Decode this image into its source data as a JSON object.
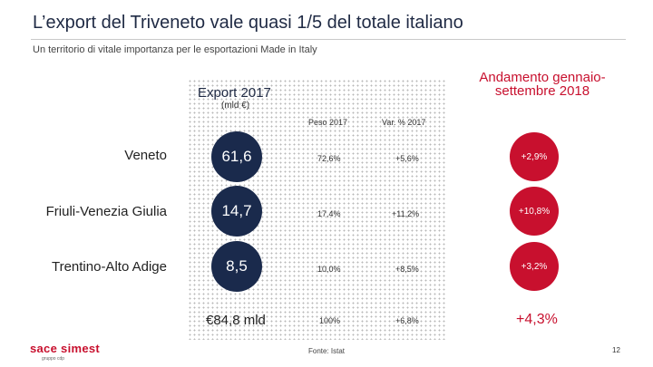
{
  "slide": {
    "title": "L’export del Triveneto vale quasi 1/5 del totale italiano",
    "subtitle": "Un territorio di vitale importanza per le esportazioni Made in Italy",
    "page_number": "12",
    "source": "Fonte: Istat"
  },
  "panel": {
    "title": "Export 2017",
    "unit": "(mld €)",
    "col_weight": "Peso 2017",
    "col_change": "Var. % 2017"
  },
  "trend": {
    "title": "Andamento gennaio-settembre 2018"
  },
  "rows": [
    {
      "region": "Veneto",
      "export": "61,6",
      "weight": "72,6%",
      "change": "+5,6%",
      "trend": "+2,9%"
    },
    {
      "region": "Friuli-Venezia Giulia",
      "export": "14,7",
      "weight": "17,4%",
      "change": "+11,2%",
      "trend": "+10,8%"
    },
    {
      "region": "Trentino-Alto Adige",
      "export": "8,5",
      "weight": "10,0%",
      "change": "+8,5%",
      "trend": "+3,2%"
    }
  ],
  "total": {
    "export": "€84,8 mld",
    "weight": "100%",
    "change": "+6,8%",
    "trend": "+4,3%"
  },
  "logo": {
    "text_left": "sace",
    "text_right": "simest",
    "tagline": "gruppo cdp"
  },
  "colors": {
    "navy": "#1a2a4c",
    "red": "#c8102e"
  }
}
